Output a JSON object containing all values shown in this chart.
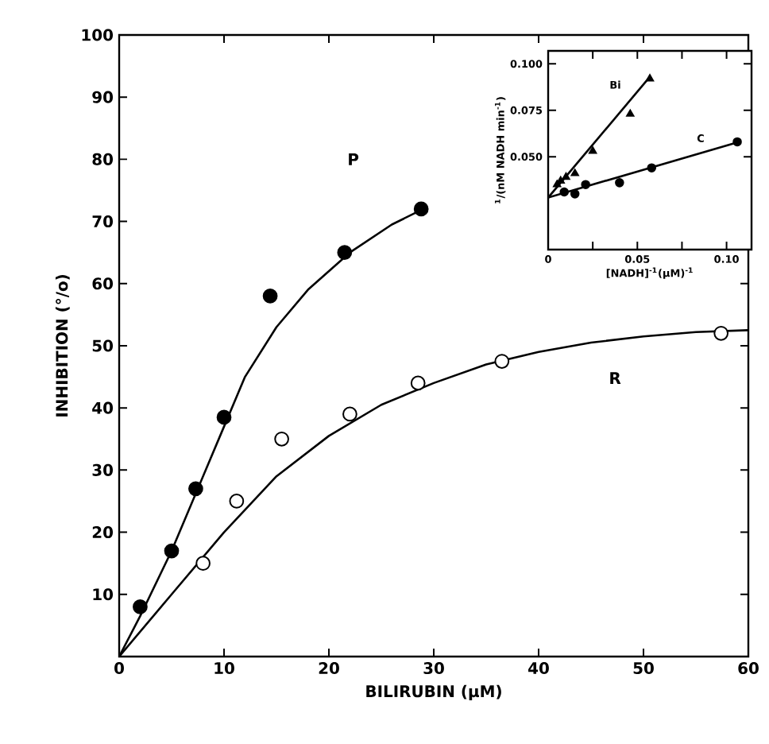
{
  "chart_data": [
    {
      "type": "scatter",
      "xlabel": "BILIRUBIN (µM)",
      "ylabel": "INHIBITION (°/o)",
      "xlim": [
        0,
        60
      ],
      "ylim": [
        0,
        100
      ],
      "xticks": [
        0,
        10,
        20,
        30,
        40,
        50,
        60
      ],
      "yticks": [
        10,
        20,
        30,
        40,
        50,
        60,
        70,
        80,
        90,
        100
      ],
      "series": [
        {
          "marker": "circle",
          "color": "#000000",
          "x": [
            2,
            5,
            7.3,
            10,
            14.4,
            21.5,
            28.8
          ],
          "values": [
            8,
            17,
            27,
            38.5,
            58,
            65,
            72
          ]
        },
        {
          "marker": "circle",
          "color": "#ffffff",
          "x": [
            8,
            11.2,
            15.5,
            22,
            28.5,
            36.5,
            57.4
          ],
          "values": [
            15,
            25,
            35,
            39,
            44,
            47.5,
            52
          ]
        },
        {
          "type": "line",
          "marker": "none",
          "color": "#000000",
          "x": [
            0,
            2,
            5,
            7.5,
            10,
            12,
            15,
            18,
            22,
            26,
            29
          ],
          "values": [
            0,
            6.5,
            17,
            27,
            37,
            45,
            53,
            59,
            65,
            69.5,
            72
          ]
        },
        {
          "type": "line",
          "marker": "none",
          "color": "#000000",
          "x": [
            0,
            5,
            10,
            15,
            20,
            25,
            30,
            35,
            40,
            45,
            50,
            55,
            60
          ],
          "values": [
            0,
            10,
            20,
            29,
            35.5,
            40.5,
            44,
            47,
            49,
            50.5,
            51.5,
            52.2,
            52.5
          ]
        }
      ],
      "annotations": [
        "P",
        "R"
      ]
    },
    {
      "type": "scatter",
      "xlabel": "[NADH]$^{-1}$(µM)$^{-1}$",
      "ylabel": "$^{1}$/(nM NADH min$^{-1}$)",
      "xlim": [
        0,
        0.114
      ],
      "ylim": [
        0,
        0.107
      ],
      "xticks": [
        0,
        {
          "value": 0.025,
          "label": null
        },
        {
          "value": 0.05,
          "label": "0.05"
        },
        {
          "value": 0.075,
          "label": null
        },
        {
          "value": 0.1,
          "label": "0.10"
        }
      ],
      "yticks": [
        {
          "value": 0.05,
          "label": "0.050"
        },
        {
          "value": 0.075,
          "label": "0.075"
        },
        {
          "value": 0.1,
          "label": "0.100"
        }
      ],
      "series": [
        {
          "marker": "triangle",
          "color": "#000000",
          "x": [
            0.057,
            0.046,
            0.025,
            0.015,
            0.01,
            0.007,
            0.005
          ],
          "values": [
            0.092,
            0.073,
            0.053,
            0.041,
            0.039,
            0.037,
            0.035
          ]
        },
        {
          "marker": "circle",
          "color": "#000000",
          "x": [
            0.106,
            0.058,
            0.04,
            0.021,
            0.015,
            0.009
          ],
          "values": [
            0.058,
            0.044,
            0.036,
            0.035,
            0.03,
            0.031
          ]
        },
        {
          "type": "line",
          "marker": "none",
          "color": "#000000",
          "x": [
            0,
            0.057
          ],
          "values": [
            0.028,
            0.093
          ]
        },
        {
          "type": "line",
          "marker": "none",
          "color": "#000000",
          "x": [
            0,
            0.107
          ],
          "values": [
            0.028,
            0.058
          ]
        }
      ],
      "annotations": [
        "Bi",
        "C"
      ]
    }
  ]
}
